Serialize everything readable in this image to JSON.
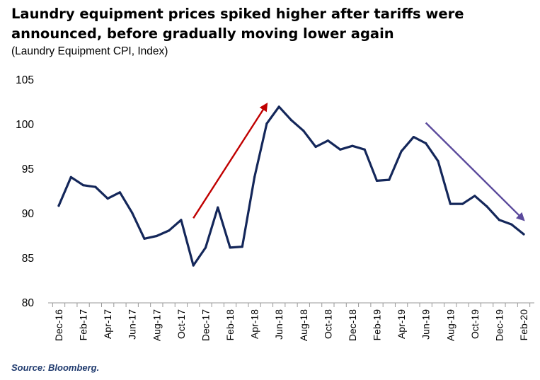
{
  "header": {
    "title_line1": "Laundry equipment prices spiked higher after tariffs were",
    "title_line2": "announced, before gradually moving lower again",
    "subtitle": "(Laundry Equipment CPI,  Index)"
  },
  "footer": {
    "source": "Source: Bloomberg."
  },
  "colors": {
    "line": "#14275a",
    "up_arrow": "#c00000",
    "down_arrow": "#5b4a9c"
  },
  "chart_data": {
    "type": "line",
    "title": "Laundry equipment prices spiked higher after tariffs were announced, before gradually moving lower again",
    "ylabel": "(Laundry Equipment CPI,  Index)",
    "ylim": [
      80,
      105
    ],
    "yticks": [
      80,
      85,
      90,
      95,
      100,
      105
    ],
    "x": [
      "Dec-16",
      "Jan-17",
      "Feb-17",
      "Mar-17",
      "Apr-17",
      "May-17",
      "Jun-17",
      "Jul-17",
      "Aug-17",
      "Sep-17",
      "Oct-17",
      "Nov-17",
      "Dec-17",
      "Jan-18",
      "Feb-18",
      "Mar-18",
      "Apr-18",
      "May-18",
      "Jun-18",
      "Jul-18",
      "Aug-18",
      "Sep-18",
      "Oct-18",
      "Nov-18",
      "Dec-18",
      "Jan-19",
      "Feb-19",
      "Mar-19",
      "Apr-19",
      "May-19",
      "Jun-19",
      "Jul-19",
      "Aug-19",
      "Sep-19",
      "Oct-19",
      "Nov-19",
      "Dec-19",
      "Jan-20",
      "Feb-20"
    ],
    "xtick_labels": [
      "Dec-16",
      "Feb-17",
      "Apr-17",
      "Jun-17",
      "Aug-17",
      "Oct-17",
      "Dec-17",
      "Feb-18",
      "Apr-18",
      "Jun-18",
      "Aug-18",
      "Oct-18",
      "Dec-18",
      "Feb-19",
      "Apr-19",
      "Jun-19",
      "Aug-19",
      "Oct-19",
      "Dec-19",
      "Feb-20"
    ],
    "series": [
      {
        "values": [
          90.9,
          94.1,
          93.2,
          93.0,
          91.7,
          92.4,
          90.1,
          87.2,
          87.5,
          88.1,
          89.3,
          84.2,
          86.2,
          90.7,
          86.2,
          86.3,
          94.1,
          100.1,
          102.0,
          100.5,
          99.3,
          97.5,
          98.2,
          97.2,
          97.6,
          97.2,
          93.7,
          93.8,
          97.0,
          98.6,
          97.9,
          95.9,
          91.1,
          91.1,
          92.0,
          90.8,
          89.3,
          88.8,
          87.7
        ]
      }
    ],
    "annotations": [
      {
        "type": "arrow",
        "direction": "up",
        "from": [
          "Nov-17",
          89.5
        ],
        "to": [
          "May-18",
          102.3
        ]
      },
      {
        "type": "arrow",
        "direction": "down",
        "from": [
          "Jun-19",
          100.2
        ],
        "to": [
          "Feb-20",
          89.3
        ]
      }
    ],
    "grid": false,
    "legend": "none"
  }
}
